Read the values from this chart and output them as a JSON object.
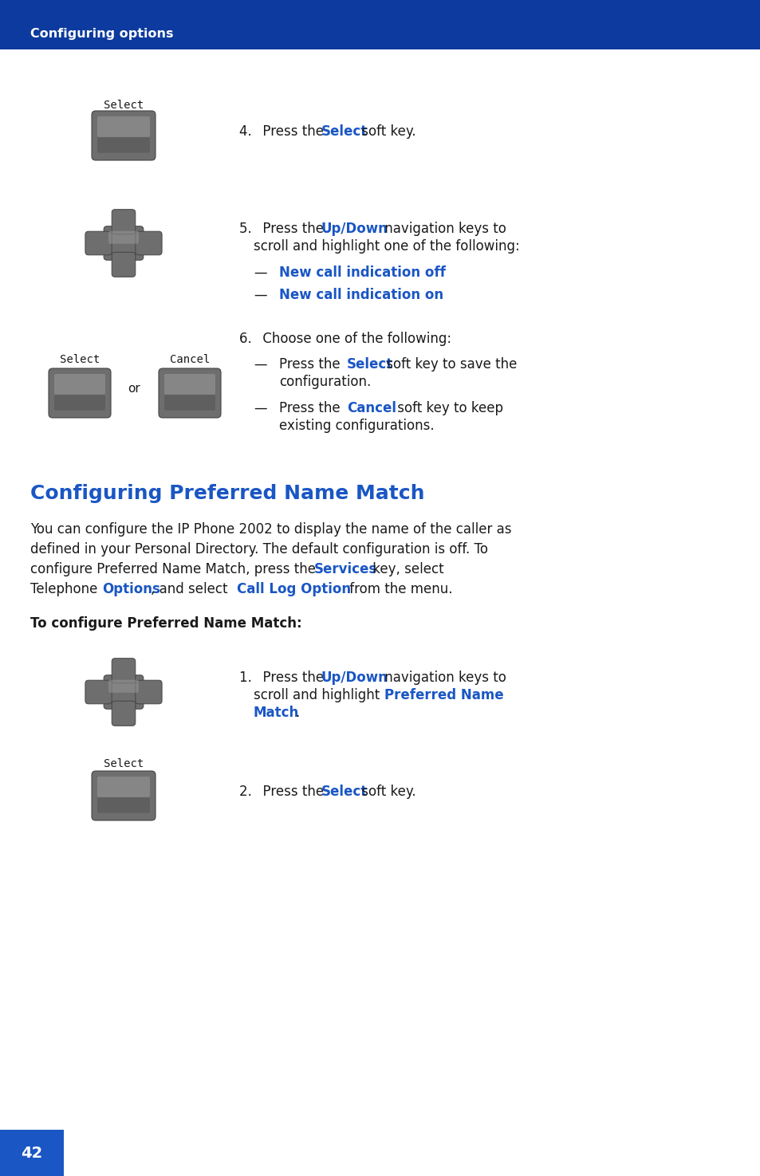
{
  "header_text": "Configuring options",
  "header_bg": "#0d3a9e",
  "header_text_color": "#ffffff",
  "page_bg": "#ffffff",
  "body_text_color": "#1a1a1a",
  "blue_color": "#1a56c4",
  "section_title": "Configuring Preferred Name Match",
  "page_number": "42",
  "page_number_bg": "#1a56c4",
  "page_number_color": "#ffffff",
  "button_dark": "#6e6e6e",
  "button_light": "#9a9a9a",
  "button_edge": "#444444"
}
